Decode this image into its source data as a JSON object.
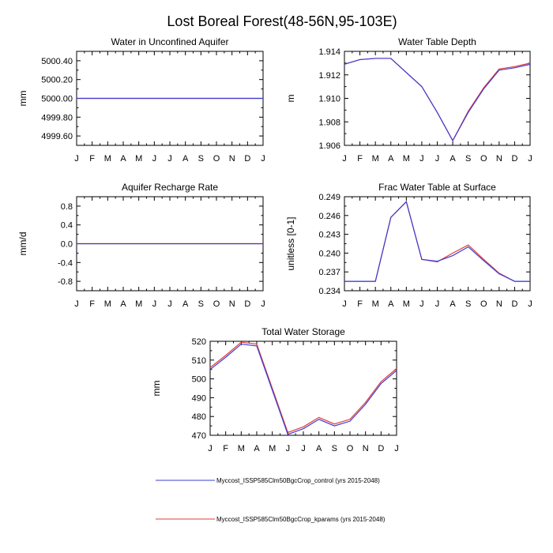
{
  "page_title": "Lost Boreal Forest(48-56N,95-103E)",
  "legend": [
    {
      "label": "Myccost_ISSP585Clm50BgcCrop_control (yrs 2015-2048)",
      "color": "#3d3dd4"
    },
    {
      "label": "Myccost_ISSP585Clm50BgcCrop_kparams (yrs 2015-2048)",
      "color": "#e23b3b"
    }
  ],
  "chart_data": [
    {
      "type": "line",
      "title": "Water in Unconfined Aquifer",
      "ylabel": "mm",
      "categories": [
        "J",
        "F",
        "M",
        "A",
        "M",
        "J",
        "J",
        "A",
        "S",
        "O",
        "N",
        "D",
        "J"
      ],
      "ylim": [
        4999.5,
        5000.5
      ],
      "yticks": [
        4999.6,
        4999.8,
        5000.0,
        5000.2,
        5000.4
      ],
      "yticklabels": [
        "4999.60",
        "4999.80",
        "5000.00",
        "5000.20",
        "5000.40"
      ],
      "series": [
        {
          "values": [
            5000,
            5000,
            5000,
            5000,
            5000,
            5000,
            5000,
            5000,
            5000,
            5000,
            5000,
            5000,
            5000
          ]
        },
        {
          "values": [
            5000,
            5000,
            5000,
            5000,
            5000,
            5000,
            5000,
            5000,
            5000,
            5000,
            5000,
            5000,
            5000
          ]
        }
      ]
    },
    {
      "type": "line",
      "title": "Water Table Depth",
      "ylabel": "m",
      "categories": [
        "J",
        "F",
        "M",
        "A",
        "M",
        "J",
        "J",
        "A",
        "S",
        "O",
        "N",
        "D",
        "J"
      ],
      "ylim": [
        1.906,
        1.914
      ],
      "yticks": [
        1.906,
        1.908,
        1.91,
        1.912,
        1.914
      ],
      "yticklabels": [
        "1.906",
        "1.908",
        "1.910",
        "1.912",
        "1.914"
      ],
      "series": [
        {
          "values": [
            1.9129,
            1.9133,
            1.9134,
            1.9134,
            1.9122,
            1.911,
            1.9088,
            1.9064,
            1.9088,
            1.9108,
            1.9124,
            1.9126,
            1.9129
          ]
        },
        {
          "values": [
            1.9129,
            1.9133,
            1.9134,
            1.9134,
            1.9122,
            1.911,
            1.9088,
            1.9064,
            1.9089,
            1.9109,
            1.9125,
            1.9127,
            1.913
          ]
        }
      ]
    },
    {
      "type": "line",
      "title": "Aquifer Recharge Rate",
      "ylabel": "mm/d",
      "categories": [
        "J",
        "F",
        "M",
        "A",
        "M",
        "J",
        "J",
        "A",
        "S",
        "O",
        "N",
        "D",
        "J"
      ],
      "ylim": [
        -1.0,
        1.0
      ],
      "yticks": [
        -0.8,
        -0.4,
        0.0,
        0.4,
        0.8
      ],
      "yticklabels": [
        "-0.8",
        "-0.4",
        "0.0",
        "0.4",
        "0.8"
      ],
      "series": [
        {
          "values": [
            0,
            0,
            0,
            0,
            0,
            0,
            0,
            0,
            0,
            0,
            0,
            0,
            0
          ]
        },
        {
          "values": [
            0,
            0,
            0,
            0,
            0,
            0,
            0,
            0,
            0,
            0,
            0,
            0,
            0
          ]
        }
      ]
    },
    {
      "type": "line",
      "title": "Frac Water Table at Surface",
      "ylabel": "unitless [0-1]",
      "categories": [
        "J",
        "F",
        "M",
        "A",
        "M",
        "J",
        "J",
        "A",
        "S",
        "O",
        "N",
        "D",
        "J"
      ],
      "ylim": [
        0.234,
        0.249
      ],
      "yticks": [
        0.234,
        0.237,
        0.24,
        0.243,
        0.246,
        0.249
      ],
      "yticklabels": [
        "0.234",
        "0.237",
        "0.240",
        "0.243",
        "0.246",
        "0.249"
      ],
      "series": [
        {
          "values": [
            0.2355,
            0.2355,
            0.2355,
            0.2457,
            0.2482,
            0.239,
            0.2387,
            0.2396,
            0.241,
            0.2388,
            0.2367,
            0.2355,
            0.2355
          ]
        },
        {
          "values": [
            0.2355,
            0.2355,
            0.2355,
            0.2457,
            0.2482,
            0.239,
            0.2386,
            0.24,
            0.2413,
            0.239,
            0.2368,
            0.2355,
            0.2355
          ]
        }
      ]
    },
    {
      "type": "line",
      "title": "Total Water Storage",
      "ylabel": "mm",
      "categories": [
        "J",
        "F",
        "M",
        "A",
        "M",
        "J",
        "J",
        "A",
        "S",
        "O",
        "N",
        "D",
        "J"
      ],
      "ylim": [
        470,
        520
      ],
      "yticks": [
        470,
        480,
        490,
        500,
        510,
        520
      ],
      "yticklabels": [
        "470",
        "480",
        "490",
        "500",
        "510",
        "520"
      ],
      "series": [
        {
          "values": [
            505.0,
            511.5,
            518.5,
            517.5,
            494.0,
            470.5,
            473.5,
            478.5,
            475.0,
            477.5,
            486.5,
            497.5,
            504.5
          ]
        },
        {
          "values": [
            506.0,
            512.5,
            519.5,
            518.5,
            495.0,
            471.5,
            474.5,
            479.5,
            476.0,
            478.5,
            487.5,
            498.5,
            505.5
          ]
        }
      ]
    }
  ]
}
